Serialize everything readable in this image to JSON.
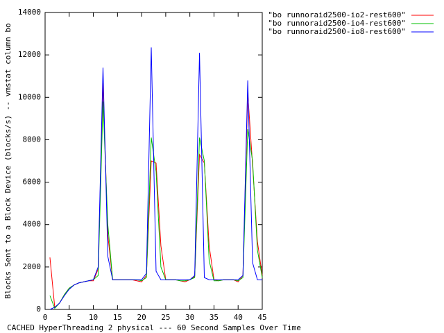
{
  "chart_data": {
    "type": "line",
    "x_label": "CACHED HyperThreading 2 physical --- 60 Second Samples Over Time",
    "y_label": "Blocks Sent to a Block Device (blocks/s) -- vmstat column bo",
    "x": [
      1,
      2,
      3,
      4,
      5,
      6,
      7,
      8,
      9,
      10,
      11,
      12,
      13,
      14,
      15,
      16,
      17,
      18,
      19,
      20,
      21,
      22,
      23,
      24,
      25,
      26,
      27,
      28,
      29,
      30,
      31,
      32,
      33,
      34,
      35,
      36,
      37,
      38,
      39,
      40,
      41,
      42,
      43,
      44,
      45
    ],
    "xlim": [
      0,
      45
    ],
    "xticks": [
      0,
      5,
      10,
      15,
      20,
      25,
      30,
      35,
      40,
      45
    ],
    "ylim": [
      0,
      14000
    ],
    "yticks": [
      0,
      2000,
      4000,
      6000,
      8000,
      10000,
      12000,
      14000
    ],
    "legend": "top-right",
    "series": [
      {
        "name": "\"bo runnoraid2500-io2-rest600\"",
        "color": "#ff0000",
        "values": [
          2450,
          100,
          300,
          700,
          1000,
          1150,
          1250,
          1300,
          1350,
          1350,
          1900,
          10700,
          3500,
          1400,
          1400,
          1400,
          1400,
          1400,
          1350,
          1300,
          1600,
          7000,
          6900,
          3000,
          1400,
          1400,
          1400,
          1350,
          1300,
          1400,
          1550,
          7300,
          6900,
          3000,
          1400,
          1350,
          1400,
          1400,
          1400,
          1300,
          1600,
          10200,
          6800,
          3200,
          1600
        ]
      },
      {
        "name": "\"bo runnoraid2500-io4-rest600\"",
        "color": "#00c000",
        "values": [
          650,
          50,
          300,
          700,
          1000,
          1150,
          1250,
          1300,
          1350,
          1400,
          1600,
          9800,
          4000,
          1400,
          1400,
          1400,
          1400,
          1400,
          1400,
          1350,
          1500,
          8100,
          6500,
          2000,
          1400,
          1400,
          1400,
          1350,
          1350,
          1400,
          1500,
          8100,
          7000,
          2300,
          1350,
          1350,
          1400,
          1400,
          1400,
          1350,
          1500,
          8500,
          7000,
          2800,
          1500
        ]
      },
      {
        "name": "\"bo runnoraid2500-io8-rest600\"",
        "color": "#0000ff",
        "values": [
          0,
          100,
          300,
          650,
          950,
          1150,
          1250,
          1300,
          1350,
          1400,
          2000,
          11400,
          2500,
          1400,
          1400,
          1400,
          1400,
          1400,
          1400,
          1400,
          1700,
          12350,
          1800,
          1400,
          1400,
          1400,
          1400,
          1400,
          1400,
          1400,
          1600,
          12100,
          1500,
          1400,
          1400,
          1400,
          1400,
          1400,
          1400,
          1400,
          1600,
          10800,
          2200,
          1400,
          1400
        ]
      }
    ]
  }
}
